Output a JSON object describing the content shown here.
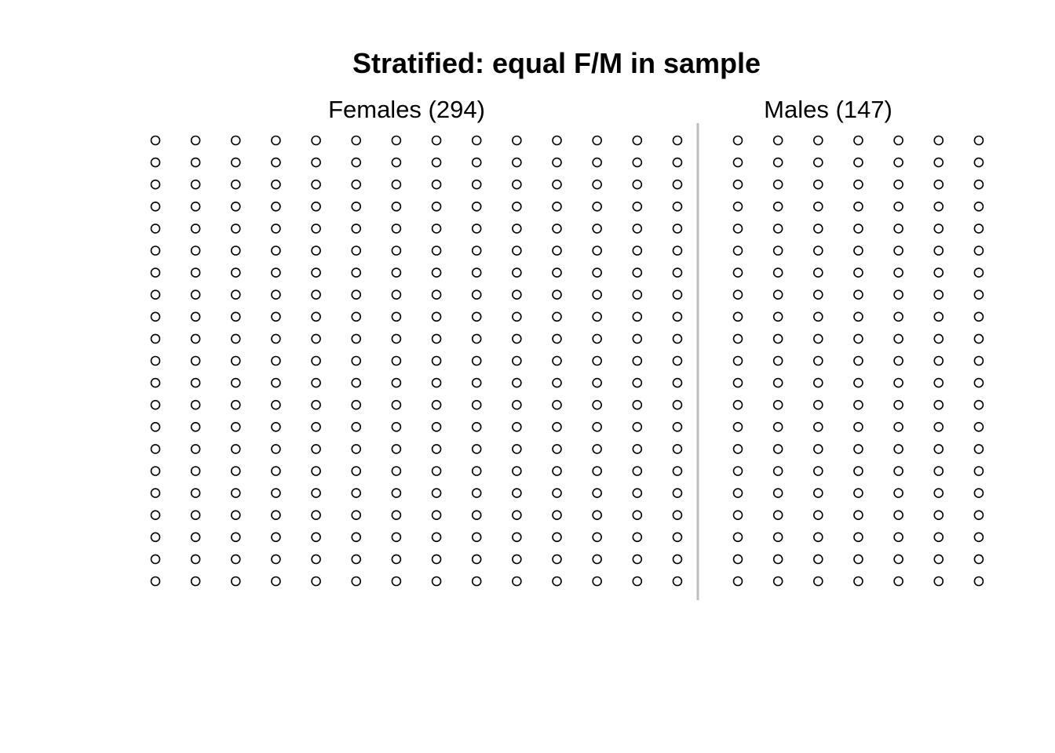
{
  "chart_data": {
    "type": "scatter",
    "title": "Stratified: equal F/M in sample",
    "groups": [
      {
        "label": "Females (294)",
        "count": 294,
        "columns": 14,
        "rows": 21
      },
      {
        "label": "Males (147)",
        "count": 147,
        "columns": 7,
        "rows": 21
      }
    ],
    "marker": "open-circle",
    "marker_color": "#000000",
    "divider_color": "#bebebe",
    "grid": false
  }
}
